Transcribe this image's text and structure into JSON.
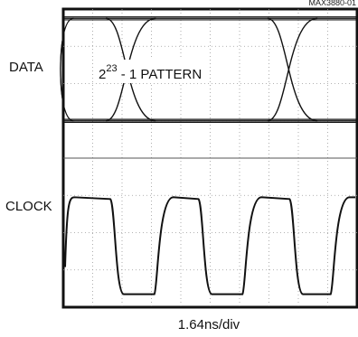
{
  "chart_data": {
    "type": "line",
    "figure_ref": "MAX3880-01",
    "xlabel": "1.64ns/div",
    "traces": [
      {
        "label": "DATA",
        "kind": "eye",
        "annotation_base": "2",
        "annotation_exp": "23",
        "annotation_rest": " - 1 PATTERN",
        "crossings_div": [
          2.3,
          7.8
        ],
        "period_div": 5.5
      },
      {
        "label": "CLOCK",
        "kind": "square",
        "rise_div": [
          0.0,
          3.1,
          6.1,
          9.1
        ],
        "fall_div": [
          1.6,
          4.6,
          7.7
        ],
        "period_div": 3.02
      }
    ],
    "divisions_x": 10,
    "divisions_y": 8,
    "grid": true
  }
}
